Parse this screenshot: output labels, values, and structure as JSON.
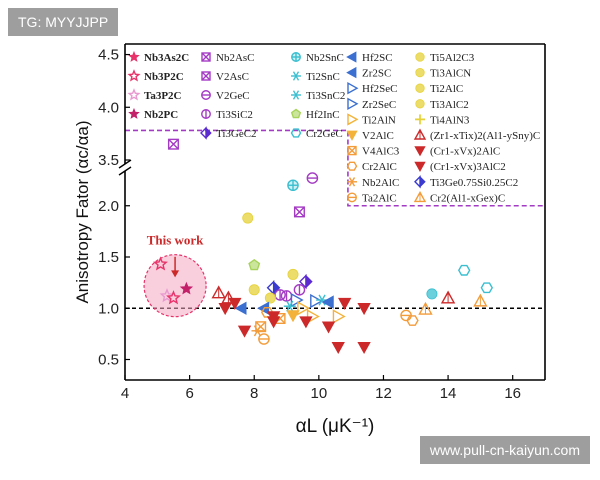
{
  "watermark_top": "TG: MYYJJPP",
  "watermark_bottom": "www.pull-cn-kaiyun.com",
  "chart_data": {
    "type": "scatter",
    "xlabel": "αL (μK⁻¹)",
    "ylabel": "Anisotropy Fator (αc/αa)",
    "xlim": [
      4,
      17
    ],
    "ylim_lower": [
      0.3,
      2.3
    ],
    "ylim_upper": [
      3.5,
      4.6
    ],
    "axis_break_y": true,
    "x_ticks": [
      "4",
      "6",
      "8",
      "10",
      "12",
      "14",
      "16"
    ],
    "y_ticks_lower": [
      "0.5",
      "1.0",
      "1.5",
      "2.0"
    ],
    "y_ticks_upper": [
      "3.5",
      "4.0",
      "4.5"
    ],
    "reference_line_y": 1.0,
    "annotation": "This work",
    "colors": {
      "this_work": "#e8336a",
      "highlight": "#f4a7c3",
      "purple": "#a43bc4",
      "orange": "#f39c3a",
      "red": "#cc2a2a",
      "cyan": "#3bbfd0",
      "green": "#a8d35a",
      "yellow": "#e6d23a",
      "blue": "#3b6fd0"
    },
    "legend": [
      {
        "label": "Nb3As2C",
        "bold": true,
        "color": "#e8336a",
        "marker": "star"
      },
      {
        "label": "Nb3P2C",
        "bold": true,
        "color": "#e8336a",
        "marker": "star-open"
      },
      {
        "label": "Ta3P2C",
        "bold": true,
        "color": "#e89ad0",
        "marker": "star-open"
      },
      {
        "label": "Nb2PC",
        "bold": true,
        "color": "#c4206a",
        "marker": "star"
      },
      {
        "label": "Nb2AsC",
        "color": "#a43bc4",
        "marker": "square-x"
      },
      {
        "label": "V2AsC",
        "color": "#a43bc4",
        "marker": "square-x"
      },
      {
        "label": "V2GeC",
        "color": "#a43bc4",
        "marker": "circle-line"
      },
      {
        "label": "Ti3SiC2",
        "color": "#a43bc4",
        "marker": "circle-v"
      },
      {
        "label": "Ti3GeC2",
        "color": "#5b2bd0",
        "marker": "diamond"
      },
      {
        "label": "Nb2SnC",
        "color": "#3bbfd0",
        "marker": "circle-plus"
      },
      {
        "label": "Ti2SnC",
        "color": "#3bbfd0",
        "marker": "asterisk"
      },
      {
        "label": "Ti3SnC2",
        "color": "#3bbfd0",
        "marker": "asterisk"
      },
      {
        "label": "Hf2InC",
        "color": "#a8d35a",
        "marker": "pentagon"
      },
      {
        "label": "Cr2GeC",
        "color": "#3bbfd0",
        "marker": "hexagon"
      },
      {
        "label": "Hf2SC",
        "color": "#3b6fd0",
        "marker": "tri-left"
      },
      {
        "label": "Zr2SC",
        "color": "#3b6fd0",
        "marker": "tri-left"
      },
      {
        "label": "Hf2SeC",
        "color": "#3b6fd0",
        "marker": "tri-right"
      },
      {
        "label": "Zr2SeC",
        "color": "#3b6fd0",
        "marker": "tri-right"
      },
      {
        "label": "Ti2AlN",
        "color": "#f3b23a",
        "marker": "tri-right"
      },
      {
        "label": "V2AlC",
        "color": "#f3b23a",
        "marker": "tri-down"
      },
      {
        "label": "V4AlC3",
        "color": "#f39c3a",
        "marker": "square-x"
      },
      {
        "label": "Cr2AlC",
        "color": "#f39c3a",
        "marker": "hexagon"
      },
      {
        "label": "Nb2AlC",
        "color": "#f39c3a",
        "marker": "asterisk"
      },
      {
        "label": "Ta2AlC",
        "color": "#f39c3a",
        "marker": "circle-line"
      },
      {
        "label": "Ti5Al2C3",
        "color": "#e6d23a",
        "marker": "circle"
      },
      {
        "label": "Ti3AlCN",
        "color": "#e6d23a",
        "marker": "circle"
      },
      {
        "label": "Ti2AlC",
        "color": "#e6d23a",
        "marker": "circle"
      },
      {
        "label": "Ti3AlC2",
        "color": "#e6d23a",
        "marker": "circle"
      },
      {
        "label": "Ti4AlN3",
        "color": "#e6d23a",
        "marker": "plus"
      },
      {
        "label": "(Zr1-xTix)2(Al1-ySny)C",
        "color": "#cc2a2a",
        "marker": "tri-up"
      },
      {
        "label": "(Cr1-xVx)2AlC",
        "color": "#cc2a2a",
        "marker": "tri-down"
      },
      {
        "label": "(Cr1-xVx)3AlC2",
        "color": "#cc2a2a",
        "marker": "tri-down"
      },
      {
        "label": "Ti3Ge0.75Si0.25C2",
        "color": "#3b3bd0",
        "marker": "diamond"
      },
      {
        "label": "Cr2(Al1-xGex)C",
        "color": "#f39c3a",
        "marker": "tri-up"
      }
    ],
    "points": [
      {
        "x": 5.1,
        "y": 1.43,
        "m": "star-open",
        "c": "#e8336a"
      },
      {
        "x": 5.3,
        "y": 1.12,
        "m": "star-open",
        "c": "#e89ad0"
      },
      {
        "x": 5.5,
        "y": 1.1,
        "m": "star-open",
        "c": "#e8336a"
      },
      {
        "x": 5.9,
        "y": 1.19,
        "m": "star",
        "c": "#c4206a"
      },
      {
        "x": 5.5,
        "y": 3.65,
        "m": "square-x",
        "c": "#a43bc4"
      },
      {
        "x": 9.4,
        "y": 1.94,
        "m": "square-x",
        "c": "#a43bc4"
      },
      {
        "x": 9.8,
        "y": 2.27,
        "m": "circle-line",
        "c": "#a43bc4"
      },
      {
        "x": 9.2,
        "y": 2.2,
        "m": "circle-plus",
        "c": "#3bbfd0"
      },
      {
        "x": 7.8,
        "y": 1.88,
        "m": "circle",
        "c": "#e6d23a"
      },
      {
        "x": 8.0,
        "y": 1.42,
        "m": "pentagon",
        "c": "#a8d35a"
      },
      {
        "x": 9.2,
        "y": 1.33,
        "m": "circle",
        "c": "#e6d23a"
      },
      {
        "x": 9.6,
        "y": 1.26,
        "m": "diamond",
        "c": "#5b2bd0"
      },
      {
        "x": 9.4,
        "y": 1.18,
        "m": "circle-v",
        "c": "#a43bc4"
      },
      {
        "x": 8.6,
        "y": 1.2,
        "m": "diamond",
        "c": "#3b3bd0"
      },
      {
        "x": 8.0,
        "y": 1.18,
        "m": "circle",
        "c": "#e6d23a"
      },
      {
        "x": 8.8,
        "y": 1.13,
        "m": "circle-v",
        "c": "#a43bc4"
      },
      {
        "x": 8.5,
        "y": 1.1,
        "m": "circle",
        "c": "#e6d23a"
      },
      {
        "x": 9.0,
        "y": 1.12,
        "m": "circle-v",
        "c": "#a43bc4"
      },
      {
        "x": 9.3,
        "y": 1.08,
        "m": "tri-right",
        "c": "#3b6fd0"
      },
      {
        "x": 9.9,
        "y": 1.07,
        "m": "tri-right",
        "c": "#3b6fd0"
      },
      {
        "x": 10.1,
        "y": 1.08,
        "m": "asterisk",
        "c": "#3bbfd0"
      },
      {
        "x": 10.3,
        "y": 1.06,
        "m": "tri-left",
        "c": "#3b6fd0"
      },
      {
        "x": 8.3,
        "y": 1.0,
        "m": "tri-left",
        "c": "#3b6fd0"
      },
      {
        "x": 7.6,
        "y": 1.0,
        "m": "tri-left",
        "c": "#3b6fd0"
      },
      {
        "x": 9.1,
        "y": 1.02,
        "m": "asterisk",
        "c": "#3bbfd0"
      },
      {
        "x": 9.5,
        "y": 1.0,
        "m": "tri-right",
        "c": "#f3b23a"
      },
      {
        "x": 8.4,
        "y": 0.96,
        "m": "hexagon",
        "c": "#f39c3a"
      },
      {
        "x": 9.2,
        "y": 0.93,
        "m": "tri-down",
        "c": "#f3b23a"
      },
      {
        "x": 9.8,
        "y": 0.92,
        "m": "tri-right",
        "c": "#f3b23a"
      },
      {
        "x": 8.8,
        "y": 0.9,
        "m": "square-x",
        "c": "#f39c3a"
      },
      {
        "x": 8.2,
        "y": 0.82,
        "m": "square-x",
        "c": "#f39c3a"
      },
      {
        "x": 8.1,
        "y": 0.78,
        "m": "asterisk",
        "c": "#f39c3a"
      },
      {
        "x": 8.3,
        "y": 0.7,
        "m": "circle-line",
        "c": "#f39c3a"
      },
      {
        "x": 8.6,
        "y": 0.92,
        "m": "tri-down",
        "c": "#cc2a2a"
      },
      {
        "x": 10.6,
        "y": 0.92,
        "m": "tri-right",
        "c": "#f3b23a"
      },
      {
        "x": 6.9,
        "y": 1.15,
        "m": "tri-up",
        "c": "#cc2a2a"
      },
      {
        "x": 7.2,
        "y": 1.1,
        "m": "tri-up",
        "c": "#cc2a2a"
      },
      {
        "x": 7.4,
        "y": 1.05,
        "m": "tri-down",
        "c": "#cc2a2a"
      },
      {
        "x": 7.1,
        "y": 1.0,
        "m": "tri-down",
        "c": "#cc2a2a"
      },
      {
        "x": 7.7,
        "y": 0.78,
        "m": "tri-down",
        "c": "#cc2a2a"
      },
      {
        "x": 8.6,
        "y": 0.87,
        "m": "tri-down",
        "c": "#cc2a2a"
      },
      {
        "x": 9.6,
        "y": 0.87,
        "m": "tri-down",
        "c": "#cc2a2a"
      },
      {
        "x": 10.3,
        "y": 0.82,
        "m": "tri-down",
        "c": "#cc2a2a"
      },
      {
        "x": 10.6,
        "y": 0.62,
        "m": "tri-down",
        "c": "#cc2a2a"
      },
      {
        "x": 11.4,
        "y": 0.62,
        "m": "tri-down",
        "c": "#cc2a2a"
      },
      {
        "x": 11.4,
        "y": 1.0,
        "m": "tri-down",
        "c": "#cc2a2a"
      },
      {
        "x": 10.8,
        "y": 1.05,
        "m": "tri-down",
        "c": "#cc2a2a"
      },
      {
        "x": 12.7,
        "y": 0.93,
        "m": "circle-line",
        "c": "#f39c3a"
      },
      {
        "x": 12.9,
        "y": 0.88,
        "m": "hexagon",
        "c": "#f39c3a"
      },
      {
        "x": 13.3,
        "y": 0.99,
        "m": "tri-up",
        "c": "#f39c3a"
      },
      {
        "x": 13.5,
        "y": 1.14,
        "m": "circle",
        "c": "#3bbfd0"
      },
      {
        "x": 14.0,
        "y": 1.1,
        "m": "tri-up",
        "c": "#cc2a2a"
      },
      {
        "x": 14.5,
        "y": 1.37,
        "m": "hexagon",
        "c": "#3bbfd0"
      },
      {
        "x": 15.2,
        "y": 1.2,
        "m": "hexagon",
        "c": "#3bbfd0"
      },
      {
        "x": 15.0,
        "y": 1.07,
        "m": "tri-up",
        "c": "#f39c3a"
      }
    ]
  }
}
